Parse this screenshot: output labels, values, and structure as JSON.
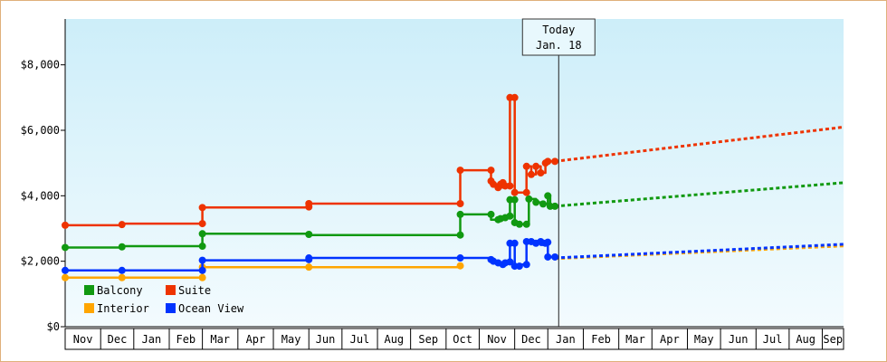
{
  "chart_data": {
    "type": "line",
    "title": "",
    "xlabel": "",
    "ylabel": "",
    "ylim": [
      0,
      9400
    ],
    "y_ticks": [
      {
        "value": 0,
        "label": "$0"
      },
      {
        "value": 2000,
        "label": "$2,000"
      },
      {
        "value": 4000,
        "label": "$4,000"
      },
      {
        "value": 6000,
        "label": "$6,000"
      },
      {
        "value": 8000,
        "label": "$8,000"
      }
    ],
    "x_range_days": [
      0,
      329
    ],
    "months": [
      {
        "label": "Nov",
        "start": 0,
        "end": 15
      },
      {
        "label": "Dec",
        "start": 15,
        "end": 29
      },
      {
        "label": "Jan",
        "start": 29,
        "end": 44
      },
      {
        "label": "Feb",
        "start": 44,
        "end": 58
      },
      {
        "label": "Mar",
        "start": 58,
        "end": 73
      },
      {
        "label": "Apr",
        "start": 73,
        "end": 88
      },
      {
        "label": "May",
        "start": 88,
        "end": 103
      },
      {
        "label": "Jun",
        "start": 103,
        "end": 117
      },
      {
        "label": "Jul",
        "start": 117,
        "end": 132
      },
      {
        "label": "Aug",
        "start": 132,
        "end": 146
      },
      {
        "label": "Sep",
        "start": 146,
        "end": 161
      },
      {
        "label": "Oct",
        "start": 161,
        "end": 175
      },
      {
        "label": "Nov",
        "start": 175,
        "end": 190
      },
      {
        "label": "Dec",
        "start": 190,
        "end": 204
      },
      {
        "label": "Jan",
        "start": 204,
        "end": 219
      },
      {
        "label": "Feb",
        "start": 219,
        "end": 234
      },
      {
        "label": "Mar",
        "start": 234,
        "end": 248
      },
      {
        "label": "Apr",
        "start": 248,
        "end": 263
      },
      {
        "label": "May",
        "start": 263,
        "end": 277
      },
      {
        "label": "Jun",
        "start": 277,
        "end": 292
      },
      {
        "label": "Jul",
        "start": 292,
        "end": 306
      },
      {
        "label": "Aug",
        "start": 306,
        "end": 320
      },
      {
        "label": "Sep",
        "start": 320,
        "end": 335
      }
    ],
    "today": {
      "x": 208.6,
      "line1": "Today",
      "line2": "Jan. 18"
    },
    "series": [
      {
        "name": "Balcony",
        "color": "#119911",
        "points": [
          [
            0,
            2420
          ],
          [
            24,
            2420
          ],
          [
            24,
            2460
          ],
          [
            58,
            2460
          ],
          [
            58,
            2840
          ],
          [
            103,
            2840
          ],
          [
            103,
            2800
          ],
          [
            167,
            2800
          ],
          [
            167,
            3430
          ],
          [
            180,
            3430
          ],
          [
            180,
            3270
          ],
          [
            183,
            3270
          ],
          [
            183,
            3330
          ],
          [
            186,
            3330
          ],
          [
            186,
            3380
          ],
          [
            188,
            3380
          ],
          [
            188,
            3880
          ],
          [
            190,
            3880
          ],
          [
            190,
            3180
          ],
          [
            192,
            3180
          ],
          [
            192,
            3130
          ],
          [
            195,
            3130
          ],
          [
            195,
            3130
          ],
          [
            196,
            3130
          ],
          [
            196,
            3900
          ],
          [
            199,
            3900
          ],
          [
            199,
            3800
          ],
          [
            202,
            3800
          ],
          [
            202,
            3750
          ],
          [
            204,
            3750
          ],
          [
            204,
            4000
          ],
          [
            205,
            4000
          ],
          [
            205,
            3680
          ],
          [
            207,
            3680
          ]
        ],
        "forecast": [
          [
            207,
            3680
          ],
          [
            329,
            4400
          ]
        ],
        "marked": [
          [
            0,
            2420
          ],
          [
            24,
            2440
          ],
          [
            58,
            2460
          ],
          [
            58,
            2840
          ],
          [
            103,
            2820
          ],
          [
            167,
            2800
          ],
          [
            167,
            3430
          ],
          [
            180,
            3430
          ],
          [
            183,
            3270
          ],
          [
            184,
            3300
          ],
          [
            186,
            3330
          ],
          [
            188,
            3380
          ],
          [
            188,
            3880
          ],
          [
            190,
            3880
          ],
          [
            190,
            3180
          ],
          [
            192,
            3130
          ],
          [
            195,
            3130
          ],
          [
            196,
            3900
          ],
          [
            199,
            3800
          ],
          [
            202,
            3750
          ],
          [
            204,
            4000
          ],
          [
            205,
            3680
          ],
          [
            207,
            3680
          ]
        ]
      },
      {
        "name": "Suite",
        "color": "#ee3300",
        "points": [
          [
            0,
            3100
          ],
          [
            24,
            3100
          ],
          [
            24,
            3150
          ],
          [
            58,
            3150
          ],
          [
            58,
            3640
          ],
          [
            103,
            3640
          ],
          [
            103,
            3760
          ],
          [
            167,
            3760
          ],
          [
            167,
            4780
          ],
          [
            180,
            4780
          ],
          [
            180,
            4450
          ],
          [
            181,
            4450
          ],
          [
            181,
            4350
          ],
          [
            183,
            4350
          ],
          [
            183,
            4250
          ],
          [
            185,
            4250
          ],
          [
            185,
            4400
          ],
          [
            186,
            4400
          ],
          [
            186,
            4300
          ],
          [
            188,
            4300
          ],
          [
            188,
            7000
          ],
          [
            190,
            7000
          ],
          [
            190,
            4100
          ],
          [
            195,
            4100
          ],
          [
            195,
            4900
          ],
          [
            197,
            4900
          ],
          [
            197,
            4650
          ],
          [
            199,
            4650
          ],
          [
            199,
            4900
          ],
          [
            201,
            4900
          ],
          [
            201,
            4700
          ],
          [
            203,
            4700
          ],
          [
            203,
            5000
          ],
          [
            204,
            5000
          ],
          [
            204,
            5050
          ],
          [
            207,
            5050
          ]
        ],
        "forecast": [
          [
            207,
            5050
          ],
          [
            329,
            6100
          ]
        ],
        "marked": [
          [
            0,
            3100
          ],
          [
            24,
            3120
          ],
          [
            58,
            3150
          ],
          [
            58,
            3640
          ],
          [
            103,
            3660
          ],
          [
            103,
            3760
          ],
          [
            167,
            3760
          ],
          [
            167,
            4780
          ],
          [
            180,
            4780
          ],
          [
            180,
            4450
          ],
          [
            181,
            4350
          ],
          [
            183,
            4250
          ],
          [
            184,
            4350
          ],
          [
            185,
            4400
          ],
          [
            186,
            4300
          ],
          [
            188,
            4300
          ],
          [
            188,
            7000
          ],
          [
            190,
            7000
          ],
          [
            190,
            4100
          ],
          [
            195,
            4100
          ],
          [
            195,
            4900
          ],
          [
            197,
            4650
          ],
          [
            199,
            4900
          ],
          [
            201,
            4700
          ],
          [
            203,
            5000
          ],
          [
            204,
            5050
          ],
          [
            207,
            5050
          ]
        ]
      },
      {
        "name": "Interior",
        "color": "#ffa500",
        "points": [
          [
            0,
            1500
          ],
          [
            58,
            1500
          ],
          [
            58,
            1820
          ],
          [
            167,
            1820
          ]
        ],
        "forecast": [
          [
            207,
            2080
          ],
          [
            329,
            2470
          ]
        ],
        "marked": [
          [
            0,
            1500
          ],
          [
            24,
            1500
          ],
          [
            58,
            1500
          ],
          [
            58,
            1820
          ],
          [
            103,
            1820
          ],
          [
            167,
            1860
          ]
        ]
      },
      {
        "name": "Ocean View",
        "color": "#0033ff",
        "points": [
          [
            0,
            1720
          ],
          [
            24,
            1720
          ],
          [
            58,
            1720
          ],
          [
            58,
            2030
          ],
          [
            103,
            2030
          ],
          [
            103,
            2100
          ],
          [
            167,
            2100
          ],
          [
            180,
            2100
          ],
          [
            180,
            2000
          ],
          [
            181,
            2000
          ],
          [
            181,
            1950
          ],
          [
            183,
            1950
          ],
          [
            183,
            1900
          ],
          [
            185,
            1900
          ],
          [
            185,
            1950
          ],
          [
            186,
            1950
          ],
          [
            186,
            1980
          ],
          [
            188,
            1980
          ],
          [
            188,
            2550
          ],
          [
            190,
            2550
          ],
          [
            190,
            1850
          ],
          [
            192,
            1850
          ],
          [
            192,
            1900
          ],
          [
            195,
            1900
          ],
          [
            195,
            2600
          ],
          [
            197,
            2600
          ],
          [
            197,
            2550
          ],
          [
            199,
            2550
          ],
          [
            199,
            2600
          ],
          [
            201,
            2600
          ],
          [
            201,
            2500
          ],
          [
            203,
            2500
          ],
          [
            203,
            2600
          ],
          [
            204,
            2600
          ],
          [
            204,
            2130
          ],
          [
            207,
            2130
          ]
        ],
        "forecast": [
          [
            207,
            2100
          ],
          [
            329,
            2520
          ]
        ],
        "marked": [
          [
            0,
            1720
          ],
          [
            24,
            1720
          ],
          [
            58,
            1720
          ],
          [
            58,
            2030
          ],
          [
            103,
            2050
          ],
          [
            103,
            2100
          ],
          [
            167,
            2100
          ],
          [
            180,
            2050
          ],
          [
            181,
            2000
          ],
          [
            183,
            1950
          ],
          [
            185,
            1900
          ],
          [
            186,
            1950
          ],
          [
            188,
            1980
          ],
          [
            188,
            2550
          ],
          [
            190,
            2550
          ],
          [
            190,
            1850
          ],
          [
            192,
            1850
          ],
          [
            195,
            1900
          ],
          [
            195,
            2600
          ],
          [
            197,
            2600
          ],
          [
            199,
            2550
          ],
          [
            201,
            2600
          ],
          [
            203,
            2550
          ],
          [
            204,
            2580
          ],
          [
            204,
            2130
          ],
          [
            207,
            2130
          ]
        ]
      }
    ],
    "legend": [
      {
        "name": "Balcony",
        "color": "#119911"
      },
      {
        "name": "Suite",
        "color": "#ee3300"
      },
      {
        "name": "Interior",
        "color": "#ffa500"
      },
      {
        "name": "Ocean View",
        "color": "#0033ff"
      }
    ],
    "legend_placement": "bottom-left",
    "grid": false
  }
}
